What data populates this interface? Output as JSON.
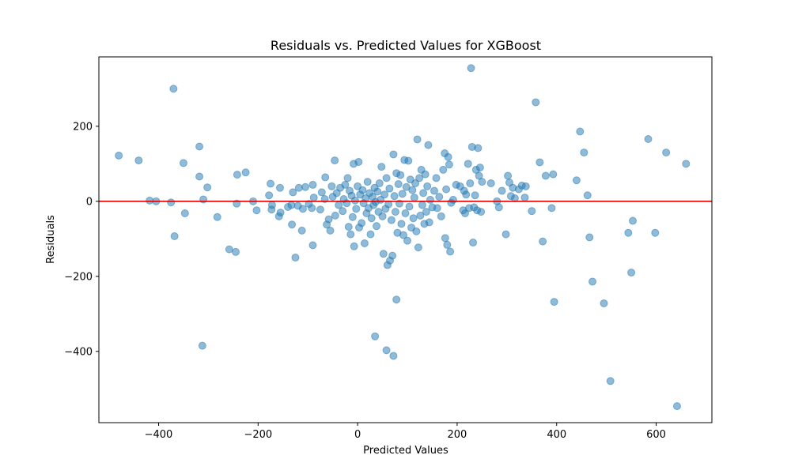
{
  "chart_data": {
    "type": "scatter",
    "title": "Residuals vs. Predicted Values for XGBoost",
    "xlabel": "Predicted Values",
    "ylabel": "Residuals",
    "xlim": [
      -520,
      712
    ],
    "ylim": [
      -590,
      385
    ],
    "xticks": [
      -400,
      -200,
      0,
      200,
      400,
      600
    ],
    "yticks": [
      -400,
      -200,
      0,
      200
    ],
    "grid": false,
    "reference_line": {
      "y": 0,
      "color": "#e00000"
    },
    "marker_color": "#1f77b4",
    "marker_alpha": 0.5,
    "points": [
      {
        "x": -480,
        "y": 122
      },
      {
        "x": -440,
        "y": 109
      },
      {
        "x": -418,
        "y": 2
      },
      {
        "x": -405,
        "y": 0
      },
      {
        "x": -375,
        "y": -3
      },
      {
        "x": -370,
        "y": 300
      },
      {
        "x": -368,
        "y": -93
      },
      {
        "x": -350,
        "y": 102
      },
      {
        "x": -347,
        "y": -32
      },
      {
        "x": -318,
        "y": 146
      },
      {
        "x": -318,
        "y": 66
      },
      {
        "x": -312,
        "y": -385
      },
      {
        "x": -310,
        "y": 5
      },
      {
        "x": -302,
        "y": 37
      },
      {
        "x": -282,
        "y": -42
      },
      {
        "x": -258,
        "y": -128
      },
      {
        "x": -245,
        "y": -135
      },
      {
        "x": -243,
        "y": -6
      },
      {
        "x": -242,
        "y": 71
      },
      {
        "x": -225,
        "y": 77
      },
      {
        "x": -210,
        "y": 0
      },
      {
        "x": -203,
        "y": -24
      },
      {
        "x": -178,
        "y": 16
      },
      {
        "x": -175,
        "y": 47
      },
      {
        "x": -173,
        "y": -22
      },
      {
        "x": -172,
        "y": -10
      },
      {
        "x": -158,
        "y": -40
      },
      {
        "x": -156,
        "y": 36
      },
      {
        "x": -155,
        "y": -30
      },
      {
        "x": -140,
        "y": -15
      },
      {
        "x": -133,
        "y": -10
      },
      {
        "x": -132,
        "y": -62
      },
      {
        "x": -130,
        "y": 24
      },
      {
        "x": -125,
        "y": -150
      },
      {
        "x": -120,
        "y": -12
      },
      {
        "x": -118,
        "y": 36
      },
      {
        "x": -112,
        "y": -78
      },
      {
        "x": -110,
        "y": -20
      },
      {
        "x": -105,
        "y": 38
      },
      {
        "x": -98,
        "y": -7
      },
      {
        "x": -92,
        "y": -18
      },
      {
        "x": -90,
        "y": 44
      },
      {
        "x": -90,
        "y": -117
      },
      {
        "x": -88,
        "y": 10
      },
      {
        "x": -75,
        "y": -22
      },
      {
        "x": -72,
        "y": 24
      },
      {
        "x": -66,
        "y": 6
      },
      {
        "x": -65,
        "y": 64
      },
      {
        "x": -62,
        "y": -62
      },
      {
        "x": -58,
        "y": -48
      },
      {
        "x": -55,
        "y": -78
      },
      {
        "x": -52,
        "y": 40
      },
      {
        "x": -50,
        "y": 12
      },
      {
        "x": -46,
        "y": 109
      },
      {
        "x": -45,
        "y": -38
      },
      {
        "x": -42,
        "y": 22
      },
      {
        "x": -38,
        "y": -10
      },
      {
        "x": -35,
        "y": 36
      },
      {
        "x": -30,
        "y": -26
      },
      {
        "x": -28,
        "y": 6
      },
      {
        "x": -25,
        "y": 44
      },
      {
        "x": -22,
        "y": -5
      },
      {
        "x": -20,
        "y": 62
      },
      {
        "x": -18,
        "y": -68
      },
      {
        "x": -16,
        "y": 28
      },
      {
        "x": -14,
        "y": -88
      },
      {
        "x": -12,
        "y": 15
      },
      {
        "x": -10,
        "y": -42
      },
      {
        "x": -8,
        "y": 100
      },
      {
        "x": -7,
        "y": -120
      },
      {
        "x": -5,
        "y": 2
      },
      {
        "x": -3,
        "y": -20
      },
      {
        "x": 0,
        "y": 40
      },
      {
        "x": 2,
        "y": 105
      },
      {
        "x": 3,
        "y": -70
      },
      {
        "x": 5,
        "y": 18
      },
      {
        "x": 8,
        "y": -58
      },
      {
        "x": 10,
        "y": 30
      },
      {
        "x": 12,
        "y": -5
      },
      {
        "x": 14,
        "y": -112
      },
      {
        "x": 16,
        "y": 8
      },
      {
        "x": 18,
        "y": -32
      },
      {
        "x": 20,
        "y": 52
      },
      {
        "x": 22,
        "y": -18
      },
      {
        "x": 24,
        "y": 22
      },
      {
        "x": 26,
        "y": -88
      },
      {
        "x": 28,
        "y": -45
      },
      {
        "x": 30,
        "y": 12
      },
      {
        "x": 32,
        "y": -10
      },
      {
        "x": 34,
        "y": 36
      },
      {
        "x": 35,
        "y": -360
      },
      {
        "x": 36,
        "y": -2
      },
      {
        "x": 38,
        "y": -66
      },
      {
        "x": 40,
        "y": 26
      },
      {
        "x": 42,
        "y": -28
      },
      {
        "x": 44,
        "y": 48
      },
      {
        "x": 46,
        "y": 4
      },
      {
        "x": 48,
        "y": 92
      },
      {
        "x": 50,
        "y": -40
      },
      {
        "x": 52,
        "y": -140
      },
      {
        "x": 54,
        "y": 18
      },
      {
        "x": 56,
        "y": -20
      },
      {
        "x": 58,
        "y": 62
      },
      {
        "x": 58,
        "y": -397
      },
      {
        "x": 60,
        "y": -170
      },
      {
        "x": 62,
        "y": -8
      },
      {
        "x": 64,
        "y": 34
      },
      {
        "x": 65,
        "y": -158
      },
      {
        "x": 68,
        "y": -50
      },
      {
        "x": 70,
        "y": -145
      },
      {
        "x": 72,
        "y": 125
      },
      {
        "x": 72,
        "y": -412
      },
      {
        "x": 74,
        "y": 14
      },
      {
        "x": 76,
        "y": -28
      },
      {
        "x": 78,
        "y": 75
      },
      {
        "x": 78,
        "y": -262
      },
      {
        "x": 80,
        "y": -84
      },
      {
        "x": 82,
        "y": 46
      },
      {
        "x": 84,
        "y": -6
      },
      {
        "x": 86,
        "y": 70
      },
      {
        "x": 88,
        "y": -60
      },
      {
        "x": 90,
        "y": 20
      },
      {
        "x": 92,
        "y": -90
      },
      {
        "x": 94,
        "y": 110
      },
      {
        "x": 96,
        "y": -32
      },
      {
        "x": 98,
        "y": 38
      },
      {
        "x": 100,
        "y": -105
      },
      {
        "x": 102,
        "y": 108
      },
      {
        "x": 104,
        "y": -14
      },
      {
        "x": 106,
        "y": 58
      },
      {
        "x": 108,
        "y": -70
      },
      {
        "x": 110,
        "y": 30
      },
      {
        "x": 112,
        "y": -45
      },
      {
        "x": 114,
        "y": 10
      },
      {
        "x": 116,
        "y": 48
      },
      {
        "x": 118,
        "y": -80
      },
      {
        "x": 120,
        "y": 165
      },
      {
        "x": 122,
        "y": -123
      },
      {
        "x": 124,
        "y": 62
      },
      {
        "x": 126,
        "y": -38
      },
      {
        "x": 128,
        "y": 84
      },
      {
        "x": 130,
        "y": -10
      },
      {
        "x": 132,
        "y": 22
      },
      {
        "x": 134,
        "y": -60
      },
      {
        "x": 136,
        "y": 72
      },
      {
        "x": 138,
        "y": -28
      },
      {
        "x": 140,
        "y": 40
      },
      {
        "x": 142,
        "y": 150
      },
      {
        "x": 144,
        "y": -56
      },
      {
        "x": 146,
        "y": 4
      },
      {
        "x": 150,
        "y": -16
      },
      {
        "x": 154,
        "y": 28
      },
      {
        "x": 158,
        "y": 62
      },
      {
        "x": 160,
        "y": -18
      },
      {
        "x": 164,
        "y": 12
      },
      {
        "x": 168,
        "y": -40
      },
      {
        "x": 172,
        "y": 84
      },
      {
        "x": 175,
        "y": 128
      },
      {
        "x": 176,
        "y": -98
      },
      {
        "x": 178,
        "y": 32
      },
      {
        "x": 180,
        "y": -116
      },
      {
        "x": 182,
        "y": 118
      },
      {
        "x": 184,
        "y": 98
      },
      {
        "x": 186,
        "y": -134
      },
      {
        "x": 188,
        "y": -4
      },
      {
        "x": 192,
        "y": 4
      },
      {
        "x": 198,
        "y": 44
      },
      {
        "x": 206,
        "y": 40
      },
      {
        "x": 212,
        "y": -24
      },
      {
        "x": 214,
        "y": 28
      },
      {
        "x": 216,
        "y": -32
      },
      {
        "x": 218,
        "y": 18
      },
      {
        "x": 222,
        "y": 100
      },
      {
        "x": 224,
        "y": -18
      },
      {
        "x": 226,
        "y": 48
      },
      {
        "x": 228,
        "y": 355
      },
      {
        "x": 230,
        "y": 145
      },
      {
        "x": 232,
        "y": -110
      },
      {
        "x": 234,
        "y": -16
      },
      {
        "x": 236,
        "y": 16
      },
      {
        "x": 238,
        "y": 84
      },
      {
        "x": 240,
        "y": -24
      },
      {
        "x": 242,
        "y": 142
      },
      {
        "x": 244,
        "y": 68
      },
      {
        "x": 246,
        "y": 90
      },
      {
        "x": 248,
        "y": -28
      },
      {
        "x": 250,
        "y": 52
      },
      {
        "x": 268,
        "y": 48
      },
      {
        "x": 280,
        "y": 0
      },
      {
        "x": 284,
        "y": -16
      },
      {
        "x": 290,
        "y": 28
      },
      {
        "x": 298,
        "y": -88
      },
      {
        "x": 302,
        "y": 68
      },
      {
        "x": 305,
        "y": 50
      },
      {
        "x": 308,
        "y": 14
      },
      {
        "x": 312,
        "y": 36
      },
      {
        "x": 316,
        "y": 8
      },
      {
        "x": 324,
        "y": 32
      },
      {
        "x": 330,
        "y": 42
      },
      {
        "x": 336,
        "y": 10
      },
      {
        "x": 338,
        "y": 40
      },
      {
        "x": 350,
        "y": -26
      },
      {
        "x": 358,
        "y": 264
      },
      {
        "x": 366,
        "y": 104
      },
      {
        "x": 372,
        "y": -107
      },
      {
        "x": 378,
        "y": 68
      },
      {
        "x": 390,
        "y": -18
      },
      {
        "x": 393,
        "y": 72
      },
      {
        "x": 395,
        "y": -268
      },
      {
        "x": 440,
        "y": 56
      },
      {
        "x": 447,
        "y": 186
      },
      {
        "x": 455,
        "y": 130
      },
      {
        "x": 462,
        "y": 16
      },
      {
        "x": 466,
        "y": -96
      },
      {
        "x": 472,
        "y": -214
      },
      {
        "x": 495,
        "y": -272
      },
      {
        "x": 508,
        "y": -479
      },
      {
        "x": 544,
        "y": -84
      },
      {
        "x": 550,
        "y": -190
      },
      {
        "x": 553,
        "y": -52
      },
      {
        "x": 584,
        "y": 166
      },
      {
        "x": 598,
        "y": -84
      },
      {
        "x": 620,
        "y": 130
      },
      {
        "x": 642,
        "y": -546
      },
      {
        "x": 660,
        "y": 100
      }
    ]
  }
}
